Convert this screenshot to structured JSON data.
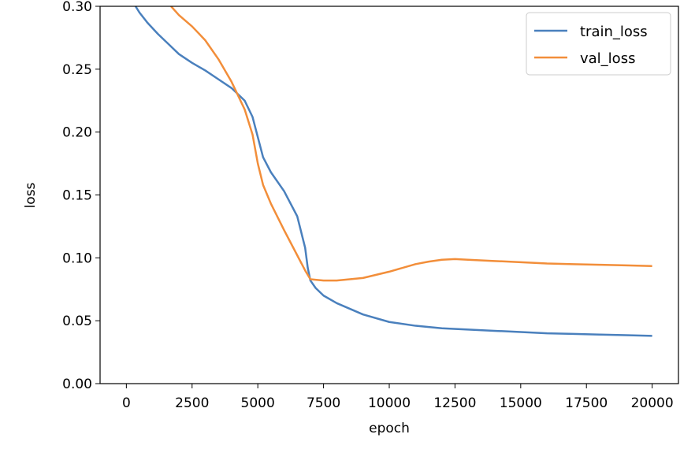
{
  "chart_data": {
    "type": "line",
    "xlabel": "epoch",
    "ylabel": "loss",
    "xlim": [
      -1000,
      21000
    ],
    "ylim": [
      0.0,
      0.3
    ],
    "x_ticks": [
      0,
      2500,
      5000,
      7500,
      10000,
      12500,
      15000,
      17500,
      20000
    ],
    "x_tick_labels": [
      "0",
      "2500",
      "5000",
      "7500",
      "10000",
      "12500",
      "15000",
      "17500",
      "20000"
    ],
    "y_ticks": [
      0.0,
      0.05,
      0.1,
      0.15,
      0.2,
      0.25,
      0.3
    ],
    "y_tick_labels": [
      "0.00",
      "0.05",
      "0.10",
      "0.15",
      "0.20",
      "0.25",
      "0.30"
    ],
    "grid": false,
    "legend_position": "top-right",
    "series": [
      {
        "name": "train_loss",
        "color": "#4a80bd",
        "x": [
          350,
          500,
          800,
          1200,
          1600,
          2000,
          2500,
          3000,
          3500,
          4000,
          4500,
          4800,
          5000,
          5200,
          5500,
          6000,
          6500,
          6800,
          6900,
          7000,
          7200,
          7500,
          8000,
          9000,
          10000,
          11000,
          12000,
          13000,
          14000,
          15000,
          16000,
          17000,
          18000,
          19000,
          20000
        ],
        "y": [
          0.3,
          0.295,
          0.287,
          0.278,
          0.27,
          0.262,
          0.255,
          0.249,
          0.242,
          0.235,
          0.225,
          0.212,
          0.196,
          0.18,
          0.168,
          0.153,
          0.133,
          0.108,
          0.092,
          0.082,
          0.076,
          0.07,
          0.064,
          0.055,
          0.049,
          0.046,
          0.044,
          0.043,
          0.042,
          0.041,
          0.04,
          0.0395,
          0.039,
          0.0385,
          0.038
        ]
      },
      {
        "name": "val_loss",
        "color": "#f28e3a",
        "x": [
          1700,
          2000,
          2500,
          3000,
          3500,
          4000,
          4500,
          4800,
          5000,
          5200,
          5500,
          6000,
          6500,
          6800,
          7000,
          7500,
          8000,
          9000,
          10000,
          11000,
          11500,
          12000,
          12500,
          13000,
          14000,
          15000,
          16000,
          17000,
          18000,
          19000,
          20000
        ],
        "y": [
          0.3,
          0.293,
          0.284,
          0.273,
          0.258,
          0.24,
          0.218,
          0.198,
          0.175,
          0.158,
          0.143,
          0.122,
          0.102,
          0.09,
          0.083,
          0.082,
          0.082,
          0.084,
          0.089,
          0.095,
          0.097,
          0.0985,
          0.099,
          0.0985,
          0.0975,
          0.0965,
          0.0955,
          0.095,
          0.0945,
          0.094,
          0.0935
        ]
      }
    ]
  }
}
